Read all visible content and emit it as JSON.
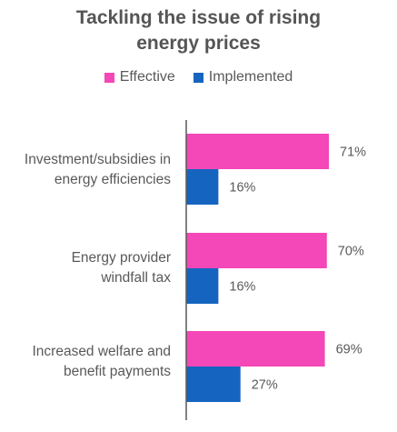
{
  "chart_data": {
    "type": "bar",
    "orientation": "horizontal",
    "title": [
      "Tackling the issue of rising",
      "energy prices"
    ],
    "categories": [
      [
        "Investment/subsidies in",
        "energy efficiencies"
      ],
      [
        "Energy provider",
        "windfall tax"
      ],
      [
        "Increased welfare and",
        "benefit payments"
      ]
    ],
    "series": [
      {
        "name": "Effective",
        "values": [
          71,
          70,
          69
        ],
        "labels": [
          "71%",
          "70%",
          "69%"
        ],
        "color": "#f447b8"
      },
      {
        "name": "Implemented",
        "values": [
          16,
          16,
          27
        ],
        "labels": [
          "16%",
          "16%",
          "27%"
        ],
        "color": "#1565c0"
      }
    ],
    "legend": "top",
    "grid": false,
    "xlim": [
      0,
      100
    ]
  }
}
